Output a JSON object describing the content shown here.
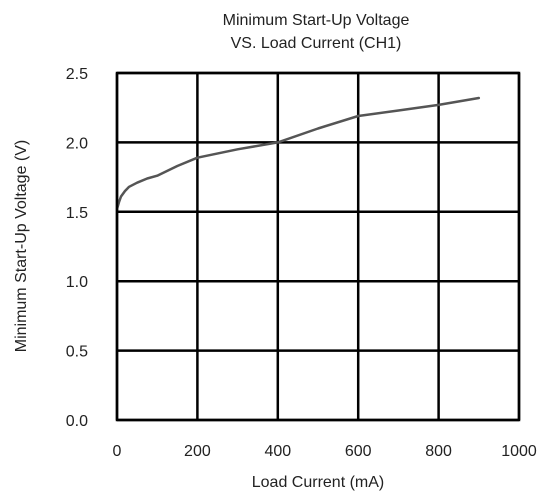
{
  "chart_data": {
    "type": "line",
    "title_lines": [
      "Minimum Start-Up Voltage",
      "VS. Load Current (CH1)"
    ],
    "xlabel": "Load Current (mA)",
    "ylabel": "Minimum Start-Up Voltage (V)",
    "xlim": [
      0,
      1000
    ],
    "ylim": [
      0,
      2.5
    ],
    "x_ticks": [
      "0",
      "200",
      "400",
      "600",
      "800",
      "1000"
    ],
    "y_ticks": [
      "0.0",
      "0.5",
      "1.0",
      "1.5",
      "2.0",
      "2.5"
    ],
    "grid": true,
    "series": [
      {
        "color": "#555555",
        "x": [
          0,
          5,
          10,
          20,
          30,
          50,
          75,
          100,
          150,
          200,
          300,
          400,
          500,
          600,
          700,
          800,
          900
        ],
        "y": [
          1.52,
          1.57,
          1.61,
          1.65,
          1.68,
          1.71,
          1.74,
          1.76,
          1.83,
          1.89,
          1.95,
          2.0,
          2.1,
          2.19,
          2.23,
          2.27,
          2.32
        ]
      }
    ]
  }
}
